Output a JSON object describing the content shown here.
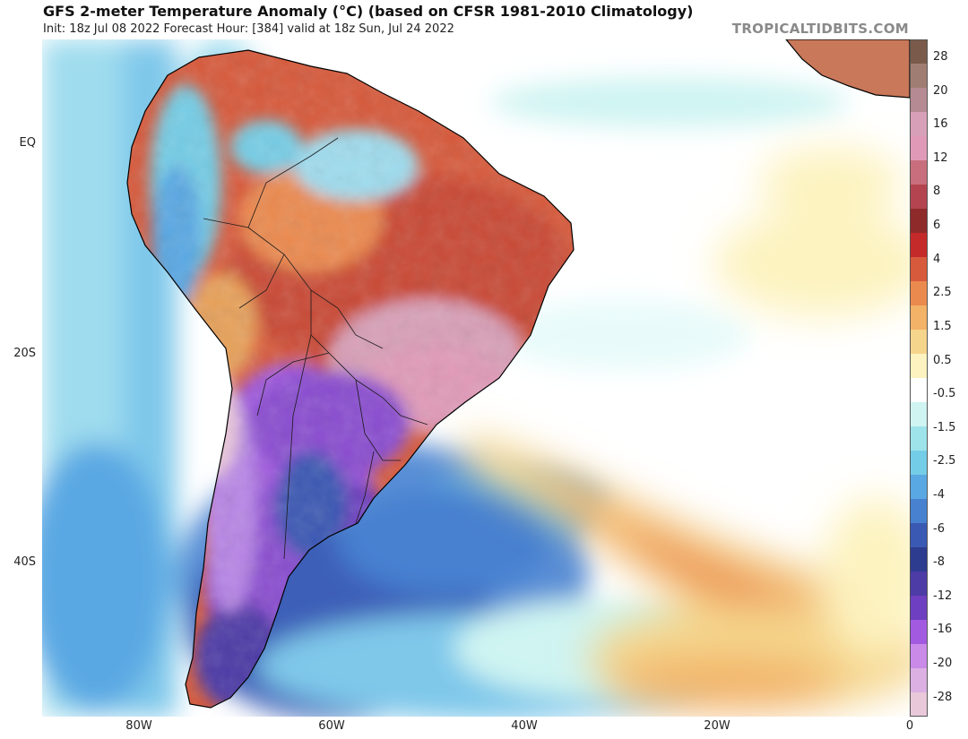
{
  "header": {
    "title": "GFS 2-meter Temperature Anomaly (°C) (based on CFSR 1981-2010 Climatology)",
    "subtitle": "Init: 18z Jul 08 2022   Forecast Hour: [384]   valid at 18z Sun, Jul 24 2022",
    "brand": "TROPICALTIDBITS.COM"
  },
  "axes": {
    "lat_labels": [
      "EQ",
      "20S",
      "40S"
    ],
    "lon_labels": [
      "80W",
      "60W",
      "40W",
      "20W",
      "0"
    ]
  },
  "colorbar": {
    "labels": [
      "28",
      "20",
      "16",
      "12",
      "8",
      "6",
      "4",
      "2.5",
      "1.5",
      "0.5",
      "-0.5",
      "-1.5",
      "-2.5",
      "-4",
      "-6",
      "-8",
      "-12",
      "-16",
      "-20",
      "-28"
    ],
    "colors": [
      "#7a5a4a",
      "#a07d72",
      "#b58a92",
      "#d8a0b8",
      "#e09ab8",
      "#c96e7c",
      "#b44550",
      "#8f2a2a",
      "#c42a2a",
      "#d75a3c",
      "#eb8a4f",
      "#f2b268",
      "#f5d58c",
      "#fdf3c0",
      "#ffffff",
      "#cff4f2",
      "#9fe3ea",
      "#74cde6",
      "#5aa8e3",
      "#4781d0",
      "#3a59b3",
      "#2d3c8f",
      "#4d3ba6",
      "#6e3fc0",
      "#a25ae0",
      "#c98ae8",
      "#dcb0e2",
      "#e9c8d9"
    ]
  },
  "overlay": {
    "colors": {
      "ocean_base": "#ffffff",
      "coastline": "#000000"
    }
  }
}
